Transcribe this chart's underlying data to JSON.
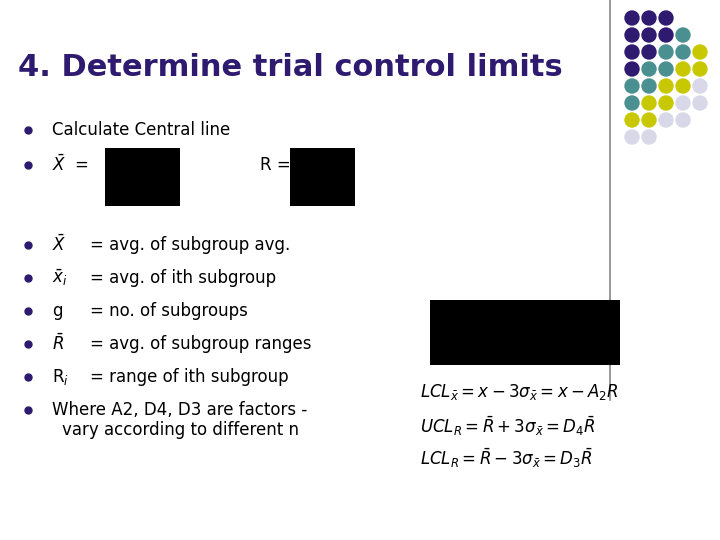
{
  "title": "4. Determine trial control limits",
  "title_fontsize": 22,
  "title_color": "#2E1A6E",
  "background_color": "#FFFFFF",
  "bullet_color": "#2E1A6E",
  "text_color": "#000000",
  "dot_grid": [
    [
      "#2E1A6E",
      "#2E1A6E",
      "#2E1A6E"
    ],
    [
      "#2E1A6E",
      "#2E1A6E",
      "#2E1A6E",
      "#4A9090"
    ],
    [
      "#2E1A6E",
      "#2E1A6E",
      "#4A9090",
      "#4A9090",
      "#C8C800"
    ],
    [
      "#2E1A6E",
      "#4A9090",
      "#4A9090",
      "#C8C800",
      "#C8C800"
    ],
    [
      "#4A9090",
      "#4A9090",
      "#C8C800",
      "#C8C800",
      "#D8D8E8"
    ],
    [
      "#4A9090",
      "#C8C800",
      "#C8C800",
      "#D8D8E8",
      "#D8D8E8"
    ],
    [
      "#C8C800",
      "#C8C800",
      "#D8D8E8",
      "#D8D8E8"
    ],
    [
      "#D8D8E8",
      "#D8D8E8"
    ]
  ],
  "eq1": "LCL",
  "eq2": "UCL",
  "eq3": "LCL"
}
